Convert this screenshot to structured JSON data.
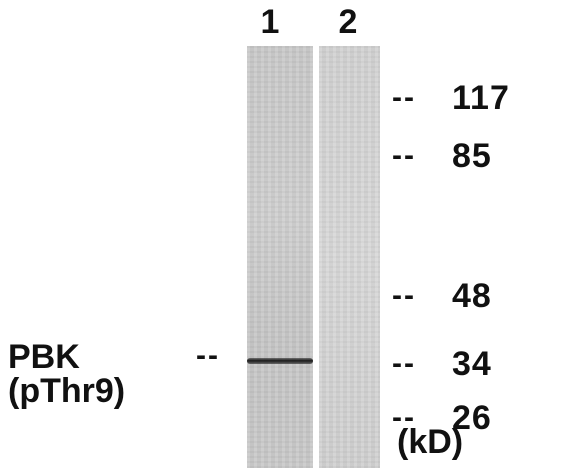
{
  "lanes": [
    {
      "label": "1"
    },
    {
      "label": "2"
    }
  ],
  "markers": [
    {
      "dash": "--",
      "value": "117"
    },
    {
      "dash": "--",
      "value": "85"
    },
    {
      "dash": "--",
      "value": "48"
    },
    {
      "dash": "--",
      "value": "34"
    },
    {
      "dash": "--",
      "value": "26"
    }
  ],
  "unit": "(kD)",
  "protein": {
    "name": "PBK",
    "dash": "--",
    "modification": "(pThr9)"
  },
  "colors": {
    "band": "#1c1c1c",
    "lane_bg": "#c9c9c9",
    "text": "#111111"
  }
}
